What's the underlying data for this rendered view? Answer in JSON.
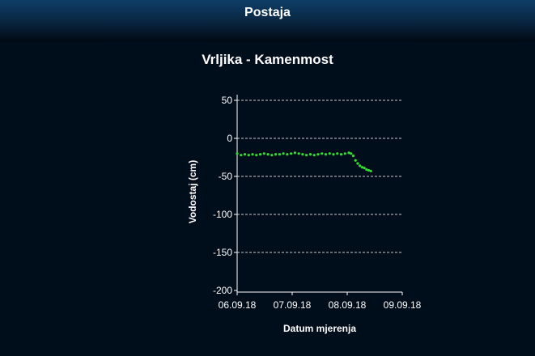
{
  "header": {
    "title": "Postaja"
  },
  "station": {
    "title": "Vrljika - Kamenmost"
  },
  "colors": {
    "header_top": "#0f3d66",
    "background": "#000d1a",
    "series": "#33dd33",
    "grid": "#cccccc",
    "text": "#ffffff"
  },
  "chart_data": {
    "type": "scatter",
    "title": "Vrljika - Kamenmost",
    "xlabel": "Datum mjerenja",
    "ylabel": "Vodostaj (cm)",
    "xlim": [
      "06.09.18",
      "09.09.18"
    ],
    "ylim": [
      -200,
      60
    ],
    "yticks": [
      50,
      0,
      -50,
      -100,
      -150,
      -200
    ],
    "xticks": [
      "06.09.18",
      "07.09.18",
      "08.09.18",
      "09.09.18"
    ],
    "grid": true,
    "series": [
      {
        "color": "#33dd33",
        "x_days": [
          0,
          0.07,
          0.14,
          0.21,
          0.28,
          0.35,
          0.42,
          0.49,
          0.56,
          0.63,
          0.7,
          0.77,
          0.84,
          0.91,
          0.98,
          1.05,
          1.12,
          1.19,
          1.26,
          1.33,
          1.4,
          1.47,
          1.54,
          1.61,
          1.68,
          1.75,
          1.82,
          1.89,
          1.96,
          2.03,
          2.07,
          2.11,
          2.15,
          2.19,
          2.23,
          2.27,
          2.31,
          2.35,
          2.39,
          2.43
        ],
        "y": [
          -20,
          -22,
          -21,
          -22,
          -21,
          -22,
          -21,
          -20,
          -21,
          -22,
          -21,
          -21,
          -20,
          -21,
          -20,
          -19,
          -20,
          -21,
          -22,
          -21,
          -22,
          -21,
          -20,
          -21,
          -20,
          -21,
          -20,
          -21,
          -20,
          -19,
          -20,
          -23,
          -29,
          -33,
          -36,
          -38,
          -39,
          -41,
          -42,
          -43
        ]
      }
    ]
  }
}
